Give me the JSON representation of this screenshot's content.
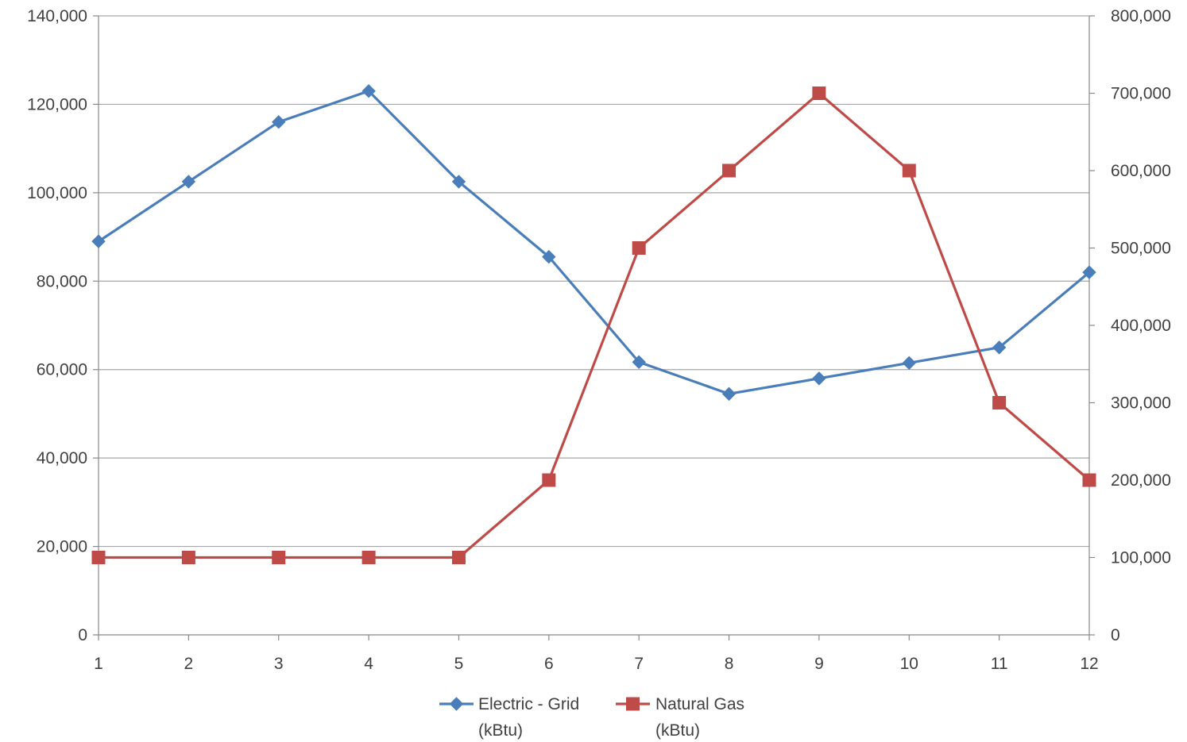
{
  "chart_data": {
    "type": "line",
    "title": "",
    "xlabel": "",
    "ylabel": "",
    "y2label": "",
    "grid": true,
    "legend_position": "bottom",
    "categories": [
      1,
      2,
      3,
      4,
      5,
      6,
      7,
      8,
      9,
      10,
      11,
      12
    ],
    "category_labels": [
      "1",
      "2",
      "3",
      "4",
      "5",
      "6",
      "7",
      "8",
      "9",
      "10",
      "11",
      "12"
    ],
    "ylim": [
      0,
      140000
    ],
    "y_ticks": [
      0,
      20000,
      40000,
      60000,
      80000,
      100000,
      120000,
      140000
    ],
    "y_tick_labels": [
      "0",
      "20,000",
      "40,000",
      "60,000",
      "80,000",
      "100,000",
      "120,000",
      "140,000"
    ],
    "y2lim": [
      0,
      800000
    ],
    "y2_ticks": [
      0,
      100000,
      200000,
      300000,
      400000,
      500000,
      600000,
      700000,
      800000
    ],
    "y2_tick_labels": [
      "0",
      "100,000",
      "200,000",
      "300,000",
      "400,000",
      "500,000",
      "600,000",
      "700,000",
      "800,000"
    ],
    "series": [
      {
        "name": "Electric - Grid (kBtu)",
        "name_lines": [
          "Electric - Grid",
          "(kBtu)"
        ],
        "axis": "primary",
        "marker": "diamond",
        "color": "#4A7EBB",
        "values": [
          89000,
          102500,
          116000,
          123000,
          102500,
          85500,
          61700,
          54500,
          58000,
          61500,
          65000,
          82000
        ]
      },
      {
        "name": "Natural Gas (kBtu)",
        "name_lines": [
          "Natural Gas",
          "(kBtu)"
        ],
        "axis": "secondary",
        "marker": "square",
        "color": "#BE4B48",
        "values": [
          100000,
          100000,
          100000,
          100000,
          100000,
          200000,
          500000,
          600000,
          700000,
          600000,
          300000,
          200000
        ]
      }
    ]
  }
}
